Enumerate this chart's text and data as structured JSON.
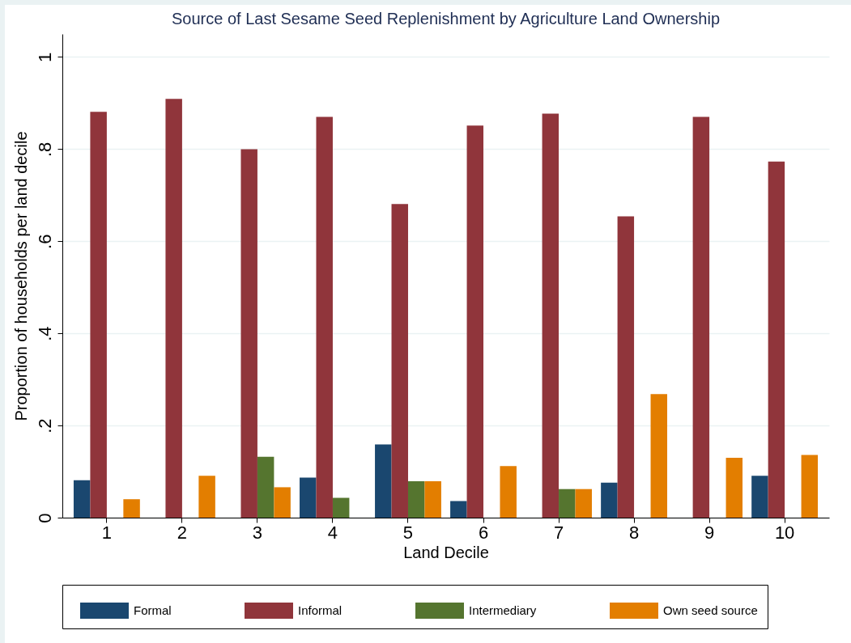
{
  "chart_data": {
    "type": "bar",
    "title": "Source of Last Sesame Seed Replenishment by Agriculture Land Ownership",
    "xlabel": "Land Decile",
    "ylabel": "Proportion of households per land decile",
    "categories": [
      "1",
      "2",
      "3",
      "4",
      "5",
      "6",
      "7",
      "8",
      "9",
      "10"
    ],
    "series": [
      {
        "name": "Formal",
        "color": "#1a476f",
        "values": [
          0.081,
          0,
          0,
          0.087,
          0.159,
          0.036,
          0,
          0.076,
          0,
          0.091
        ]
      },
      {
        "name": "Informal",
        "color": "#90353b",
        "values": [
          0.881,
          0.909,
          0.8,
          0.87,
          0.681,
          0.851,
          0.877,
          0.654,
          0.87,
          0.773
        ]
      },
      {
        "name": "Intermediary",
        "color": "#55752f",
        "values": [
          0,
          0,
          0.132,
          0.043,
          0.079,
          0,
          0.062,
          0,
          0,
          0
        ]
      },
      {
        "name": "Own seed source",
        "color": "#e37e00",
        "values": [
          0.04,
          0.091,
          0.066,
          0,
          0.079,
          0.112,
          0.062,
          0.268,
          0.13,
          0.136
        ]
      }
    ],
    "ylim": [
      0,
      1.05
    ],
    "yticks": [
      0,
      {
        "value": 0.2,
        "label": ".2"
      },
      {
        "value": 0.4,
        "label": ".4"
      },
      {
        "value": 0.6,
        "label": ".6"
      },
      {
        "value": 0.8,
        "label": ".8"
      },
      1
    ],
    "grid": "y",
    "legend": "bottom"
  }
}
